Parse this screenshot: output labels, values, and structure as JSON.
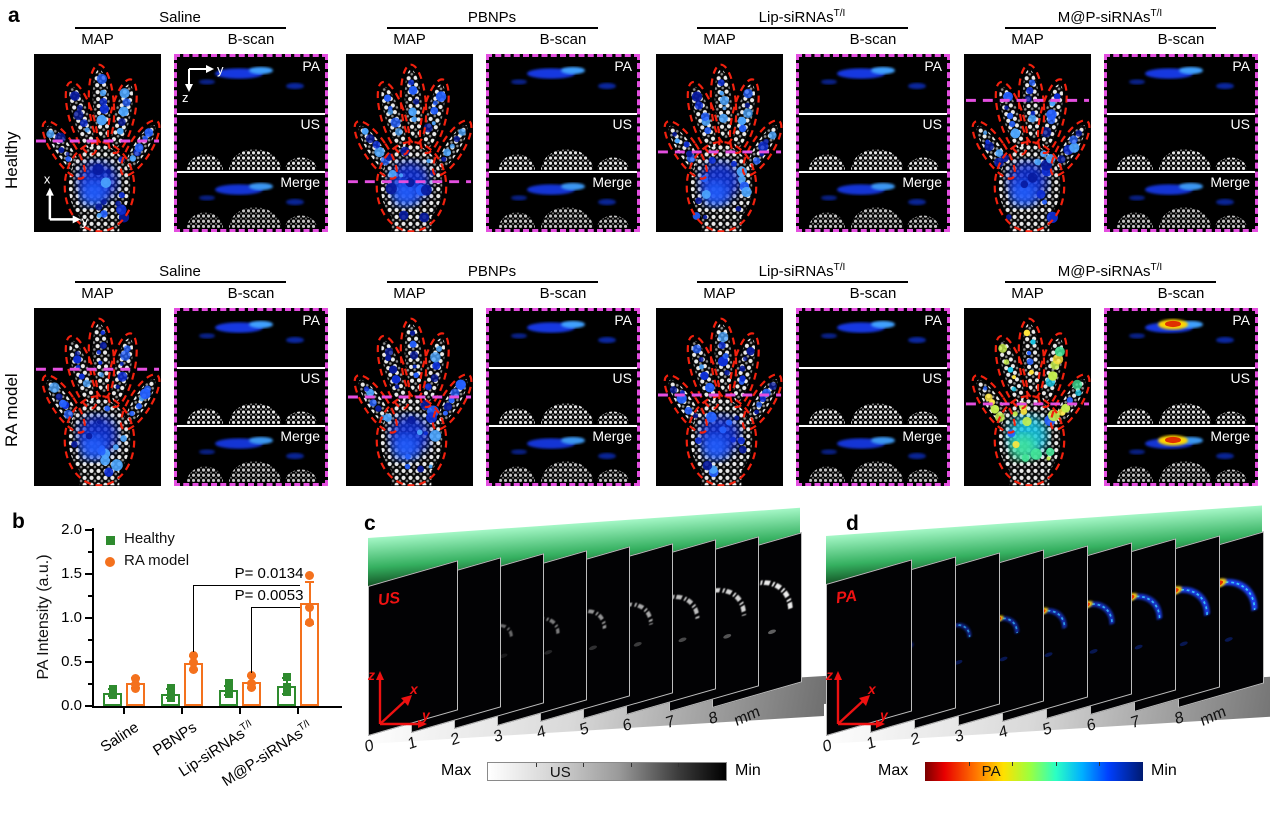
{
  "panel_a": {
    "label": "a",
    "rows": [
      {
        "label": "Healthy"
      },
      {
        "label": "RA model"
      }
    ],
    "groups": [
      {
        "base": "Saline",
        "sup": ""
      },
      {
        "base": "PBNPs",
        "sup": ""
      },
      {
        "base": "Lip-siRNAs",
        "sup": "T/I"
      },
      {
        "base": "M@P-siRNAs",
        "sup": "T/I"
      }
    ],
    "col_labels": {
      "map": "MAP",
      "bscan": "B-scan"
    },
    "bscan_labels": [
      "PA",
      "US",
      "Merge"
    ],
    "map_axis": {
      "x": "x",
      "y": "y"
    },
    "bscan_axis": {
      "y": "y",
      "z": "z"
    }
  },
  "panel_b": {
    "label": "b"
  },
  "chart_data": {
    "type": "bar",
    "title": "",
    "ylabel": "PA Intensity (a.u.)",
    "ylim": [
      0,
      2.0
    ],
    "ytick_labels": [
      "0.0",
      "0.5",
      "1.0",
      "1.5",
      "2.0"
    ],
    "legend_position": "top-left",
    "categories": [
      {
        "base": "Saline",
        "sup": ""
      },
      {
        "base": "PBNPs",
        "sup": ""
      },
      {
        "base": "Lip-siRNAs",
        "sup": "T/I"
      },
      {
        "base": "M@P-siRNAs",
        "sup": "T/I"
      }
    ],
    "series": [
      {
        "name": "Healthy",
        "color": "#2e8b2e",
        "marker": "square",
        "values": [
          0.15,
          0.14,
          0.18,
          0.23
        ],
        "errors": [
          0.04,
          0.05,
          0.05,
          0.09
        ],
        "points": [
          [
            0.13,
            0.16,
            0.19
          ],
          [
            0.09,
            0.14,
            0.21
          ],
          [
            0.14,
            0.19,
            0.26
          ],
          [
            0.16,
            0.22,
            0.33
          ]
        ]
      },
      {
        "name": "RA model",
        "color": "#f4711d",
        "marker": "circle",
        "values": [
          0.26,
          0.49,
          0.27,
          1.17
        ],
        "errors": [
          0.06,
          0.08,
          0.07,
          0.24
        ],
        "points": [
          [
            0.2,
            0.25,
            0.31
          ],
          [
            0.41,
            0.49,
            0.57
          ],
          [
            0.21,
            0.26,
            0.35
          ],
          [
            0.95,
            1.12,
            1.48
          ]
        ]
      }
    ],
    "annotations": [
      {
        "text": "P= 0.0134",
        "from": 1,
        "to": 3,
        "level": 1.38
      },
      {
        "text": "P= 0.0053",
        "from": 2,
        "to": 3,
        "level": 1.13
      }
    ]
  },
  "panel_c": {
    "label": "c",
    "image_label": "US",
    "axis": {
      "x": "x",
      "y": "y",
      "z": "z"
    },
    "ticks": [
      "0",
      "1",
      "2",
      "3",
      "4",
      "5",
      "6",
      "7",
      "8"
    ],
    "unit": "mm",
    "colorbar": {
      "max": "Max",
      "label": "US",
      "min": "Min"
    }
  },
  "panel_d": {
    "label": "d",
    "image_label": "PA",
    "axis": {
      "x": "x",
      "y": "y",
      "z": "z"
    },
    "ticks": [
      "0",
      "1",
      "2",
      "3",
      "4",
      "5",
      "6",
      "7",
      "8"
    ],
    "unit": "mm",
    "colorbar": {
      "max": "Max",
      "label": "PA",
      "min": "Min"
    }
  },
  "colors": {
    "magenta_dash": "#e44fe0",
    "paw_outline_red": "#f2200d",
    "healthy_green": "#2e8b2e",
    "ra_orange": "#f4711d"
  }
}
